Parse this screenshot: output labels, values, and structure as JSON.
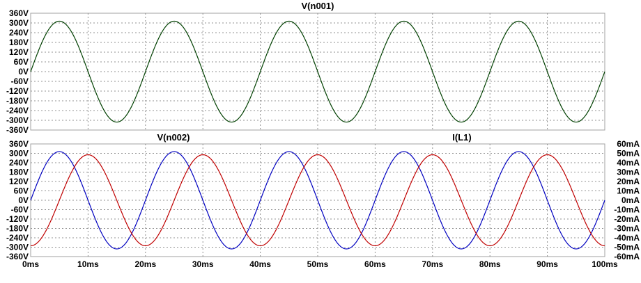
{
  "chart_data": [
    {
      "type": "line",
      "panel": "top",
      "title": "V(n001)",
      "title_color": "#006400",
      "left_axis": {
        "unit": "V",
        "ylim": [
          -360,
          360
        ],
        "ticks": [
          "360V",
          "300V",
          "240V",
          "180V",
          "120V",
          "60V",
          "0V",
          "-60V",
          "-120V",
          "-180V",
          "-240V",
          "-300V",
          "-360V"
        ]
      },
      "grid": true,
      "series": [
        {
          "name": "V(n001)",
          "axis": "left",
          "color": "#004000",
          "waveform": "sine",
          "amplitude": 311,
          "frequency_hz": 50,
          "phase_deg": 0,
          "x": [
            0,
            5,
            10,
            15,
            20,
            25,
            30,
            35,
            40,
            45,
            50,
            55,
            60,
            65,
            70,
            75,
            80,
            85,
            90,
            95,
            100
          ],
          "y": [
            0,
            311,
            0,
            -311,
            0,
            311,
            0,
            -311,
            0,
            311,
            0,
            -311,
            0,
            311,
            0,
            -311,
            0,
            311,
            0,
            -311,
            0
          ]
        }
      ]
    },
    {
      "type": "line",
      "panel": "bottom",
      "left_axis": {
        "unit": "V",
        "ylim": [
          -360,
          360
        ],
        "ticks": [
          "360V",
          "300V",
          "240V",
          "180V",
          "120V",
          "60V",
          "0V",
          "-60V",
          "-120V",
          "-180V",
          "-240V",
          "-300V",
          "-360V"
        ]
      },
      "right_axis": {
        "unit": "mA",
        "ylim": [
          -60,
          60
        ],
        "ticks": [
          "60mA",
          "50mA",
          "40mA",
          "30mA",
          "20mA",
          "10mA",
          "0mA",
          "-10mA",
          "-20mA",
          "-30mA",
          "-40mA",
          "-50mA",
          "-60mA"
        ]
      },
      "grid": true,
      "series": [
        {
          "name": "V(n002)",
          "axis": "left",
          "color": "#0000c0",
          "waveform": "sine",
          "amplitude": 311,
          "frequency_hz": 50,
          "phase_deg": 0,
          "x": [
            0,
            5,
            10,
            15,
            20,
            25,
            30,
            35,
            40,
            45,
            50,
            55,
            60,
            65,
            70,
            75,
            80,
            85,
            90,
            95,
            100
          ],
          "y": [
            0,
            311,
            0,
            -311,
            0,
            311,
            0,
            -311,
            0,
            311,
            0,
            -311,
            0,
            311,
            0,
            -311,
            0,
            311,
            0,
            -311,
            0
          ]
        },
        {
          "name": "I(L1)",
          "axis": "right",
          "color": "#c00000",
          "waveform": "sine",
          "amplitude": 48.5,
          "frequency_hz": 50,
          "phase_deg": -90,
          "x": [
            0,
            5,
            10,
            15,
            20,
            25,
            30,
            35,
            40,
            45,
            50,
            55,
            60,
            65,
            70,
            75,
            80,
            85,
            90,
            95,
            100
          ],
          "y": [
            -48.5,
            0,
            48.5,
            0,
            -48.5,
            0,
            48.5,
            0,
            -48.5,
            0,
            48.5,
            0,
            -48.5,
            0,
            48.5,
            0,
            -48.5,
            0,
            48.5,
            0,
            -48.5
          ]
        }
      ]
    }
  ],
  "x_axis": {
    "unit": "ms",
    "xlim": [
      0,
      100
    ],
    "ticks": [
      "0ms",
      "10ms",
      "20ms",
      "30ms",
      "40ms",
      "50ms",
      "60ms",
      "70ms",
      "80ms",
      "90ms",
      "100ms"
    ]
  },
  "colors": {
    "frame": "#a0a0a0",
    "grid": "#909090",
    "background": "#ffffff"
  }
}
